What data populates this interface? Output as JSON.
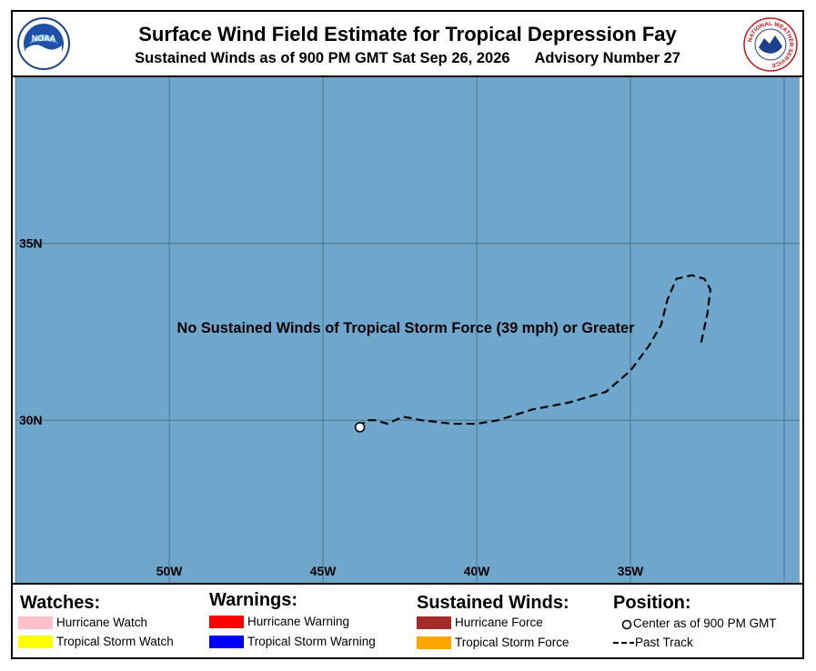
{
  "header": {
    "title": "Surface Wind Field Estimate for Tropical Depression Fay",
    "subtitle_prefix": "Sustained Winds as of 900 PM GMT Sat Sep 26, 2026",
    "subtitle_advisory": "Advisory Number 27",
    "left_logo": {
      "icon": "noaa-logo",
      "text": "NOAA"
    },
    "right_logo": {
      "icon": "nws-logo",
      "text": "NATIONAL WEATHER SERVICE"
    }
  },
  "map": {
    "ocean_color": "#6fa6cc",
    "grid_color": "#4f6f80",
    "message": "No Sustained Winds of Tropical Storm Force (39 mph) or Greater",
    "lon_labels": [
      "50W",
      "45W",
      "40W",
      "35W"
    ],
    "lat_labels": [
      "35N",
      "30N"
    ],
    "lon_range": [
      -55,
      -29.5
    ],
    "lat_range": [
      25.4,
      39.7
    ],
    "lon_grid": [
      -55,
      -50,
      -45,
      -40,
      -35,
      -30
    ],
    "lat_grid": [
      25,
      30,
      35
    ],
    "current_position": {
      "lon": -43.8,
      "lat": 29.8
    },
    "past_track": [
      [
        -32.7,
        32.2
      ],
      [
        -32.5,
        33.0
      ],
      [
        -32.4,
        33.7
      ],
      [
        -32.6,
        34.0
      ],
      [
        -33.0,
        34.1
      ],
      [
        -33.5,
        34.0
      ],
      [
        -33.8,
        33.4
      ],
      [
        -34.0,
        32.7
      ],
      [
        -34.4,
        32.1
      ],
      [
        -35.0,
        31.4
      ],
      [
        -35.8,
        30.8
      ],
      [
        -37.0,
        30.5
      ],
      [
        -38.2,
        30.3
      ],
      [
        -39.3,
        30.0
      ],
      [
        -40.0,
        29.9
      ],
      [
        -40.8,
        29.9
      ],
      [
        -41.8,
        30.0
      ],
      [
        -42.4,
        30.1
      ],
      [
        -42.9,
        29.9
      ],
      [
        -43.3,
        30.0
      ],
      [
        -43.6,
        30.0
      ],
      [
        -43.8,
        29.8
      ]
    ]
  },
  "legend": {
    "watches": {
      "heading": "Watches:",
      "items": [
        {
          "label": "Hurricane Watch",
          "color": "#ffc0cb"
        },
        {
          "label": "Tropical Storm Watch",
          "color": "#ffff00"
        }
      ]
    },
    "warnings": {
      "heading": "Warnings:",
      "items": [
        {
          "label": "Hurricane Warning",
          "color": "#ff0000"
        },
        {
          "label": "Tropical Storm Warning",
          "color": "#0000ff"
        }
      ]
    },
    "winds": {
      "heading": "Sustained Winds:",
      "items": [
        {
          "label": "Hurricane Force",
          "color": "#a52a2a"
        },
        {
          "label": "Tropical Storm Force",
          "color": "#ffa500"
        }
      ]
    },
    "position": {
      "heading": "Position:",
      "center_label": "Center as of 900 PM GMT",
      "track_label": "Past Track"
    }
  }
}
